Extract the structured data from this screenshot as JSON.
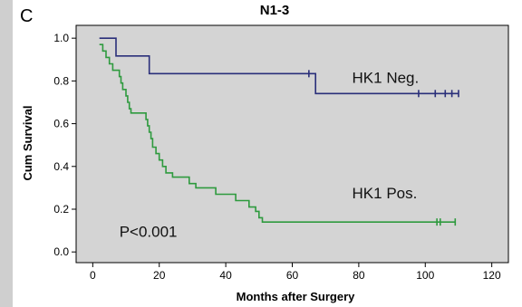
{
  "panel_label": "C",
  "chart_data": {
    "type": "line",
    "title": "N1-3",
    "xlabel": "Months after Surgery",
    "ylabel": "Cum Survival",
    "xlim": [
      -5,
      125
    ],
    "ylim": [
      -0.05,
      1.06
    ],
    "xticks": [
      0,
      20,
      40,
      60,
      80,
      100,
      120
    ],
    "yticks": [
      0.0,
      0.2,
      0.4,
      0.6,
      0.8,
      1.0
    ],
    "ytick_labels": [
      "0.0",
      "0.2",
      "0.4",
      "0.6",
      "0.8",
      "1.0"
    ],
    "grid": false,
    "background_color": "#d4d4d4",
    "series": [
      {
        "name": "HK1 Neg.",
        "color": "#2a2f7a",
        "step": [
          [
            2,
            1.0
          ],
          [
            7,
            1.0
          ],
          [
            7,
            0.917
          ],
          [
            17,
            0.917
          ],
          [
            17,
            0.834
          ],
          [
            67,
            0.834
          ],
          [
            67,
            0.741
          ],
          [
            110,
            0.741
          ]
        ],
        "censored": [
          [
            65,
            0.834
          ],
          [
            98,
            0.741
          ],
          [
            103,
            0.741
          ],
          [
            106,
            0.741
          ],
          [
            108,
            0.741
          ],
          [
            110,
            0.741
          ]
        ]
      },
      {
        "name": "HK1 Pos.",
        "color": "#2e9a3e",
        "step": [
          [
            2,
            0.97
          ],
          [
            3,
            0.97
          ],
          [
            3,
            0.94
          ],
          [
            4,
            0.94
          ],
          [
            4,
            0.91
          ],
          [
            5,
            0.91
          ],
          [
            5,
            0.88
          ],
          [
            6,
            0.88
          ],
          [
            6,
            0.85
          ],
          [
            8,
            0.85
          ],
          [
            8,
            0.82
          ],
          [
            8.5,
            0.82
          ],
          [
            8.5,
            0.79
          ],
          [
            9,
            0.79
          ],
          [
            9,
            0.76
          ],
          [
            10,
            0.76
          ],
          [
            10,
            0.73
          ],
          [
            10.5,
            0.73
          ],
          [
            10.5,
            0.7
          ],
          [
            11,
            0.7
          ],
          [
            11,
            0.67
          ],
          [
            11.5,
            0.67
          ],
          [
            11.5,
            0.65
          ],
          [
            16,
            0.65
          ],
          [
            16,
            0.62
          ],
          [
            16.5,
            0.62
          ],
          [
            16.5,
            0.59
          ],
          [
            17,
            0.59
          ],
          [
            17,
            0.56
          ],
          [
            17.5,
            0.56
          ],
          [
            17.5,
            0.53
          ],
          [
            18,
            0.53
          ],
          [
            18,
            0.49
          ],
          [
            19,
            0.49
          ],
          [
            19,
            0.46
          ],
          [
            20,
            0.46
          ],
          [
            20,
            0.43
          ],
          [
            21,
            0.43
          ],
          [
            21,
            0.4
          ],
          [
            22,
            0.4
          ],
          [
            22,
            0.37
          ],
          [
            24,
            0.37
          ],
          [
            24,
            0.35
          ],
          [
            29,
            0.35
          ],
          [
            29,
            0.32
          ],
          [
            31,
            0.32
          ],
          [
            31,
            0.3
          ],
          [
            37,
            0.3
          ],
          [
            37,
            0.27
          ],
          [
            43,
            0.27
          ],
          [
            43,
            0.24
          ],
          [
            47,
            0.24
          ],
          [
            47,
            0.21
          ],
          [
            49,
            0.21
          ],
          [
            49,
            0.19
          ],
          [
            50,
            0.19
          ],
          [
            50,
            0.16
          ],
          [
            51,
            0.16
          ],
          [
            51,
            0.14
          ],
          [
            109,
            0.14
          ]
        ],
        "censored": [
          [
            103.5,
            0.14
          ],
          [
            104.5,
            0.14
          ],
          [
            109,
            0.14
          ]
        ]
      }
    ],
    "annotations": [
      {
        "text": "HK1 Neg.",
        "x": 78,
        "y": 0.79
      },
      {
        "text": "HK1 Pos.",
        "x": 78,
        "y": 0.25
      },
      {
        "text": "P<0.001",
        "x": 8,
        "y": 0.07
      }
    ]
  }
}
